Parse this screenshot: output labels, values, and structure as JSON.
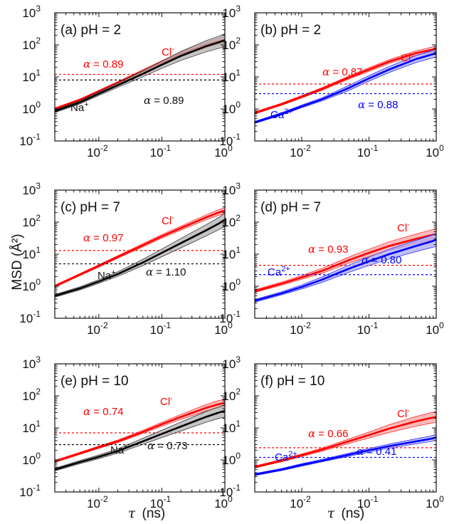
{
  "figure": {
    "ylabel": "MSD (Å²)",
    "xlabel_symbol": "τ",
    "xlabel_unit": "(ns)"
  },
  "chart_data": [
    {
      "type": "line",
      "id": "a",
      "title": "(a) pH = 2",
      "xscale": "log",
      "yscale": "log",
      "xlim": [
        0.002,
        1
      ],
      "ylim": [
        0.1,
        1000
      ],
      "xticks": [
        "10-2",
        "10-1",
        "100"
      ],
      "yticks": [
        "10-1",
        "100",
        "101",
        "102",
        "103"
      ],
      "series": [
        {
          "name": "Cl-",
          "color": "#ff0000",
          "x": [
            0.002,
            0.005,
            0.01,
            0.02,
            0.05,
            0.1,
            0.2,
            0.5,
            0.8,
            1.0
          ],
          "y": [
            1.0,
            1.9,
            3.5,
            6.5,
            15,
            28,
            52,
            100,
            130,
            145
          ],
          "band": [
            0.08,
            0.08,
            0.09,
            0.1,
            0.12,
            0.14,
            0.17,
            0.22,
            0.25,
            0.28
          ],
          "alpha": "0.89",
          "ref_y": 12
        },
        {
          "name": "Na+",
          "color": "#000000",
          "x": [
            0.002,
            0.005,
            0.01,
            0.02,
            0.05,
            0.1,
            0.2,
            0.5,
            0.8,
            1.0
          ],
          "y": [
            0.85,
            1.6,
            3.0,
            5.5,
            12.5,
            24,
            45,
            90,
            120,
            140
          ],
          "band": [
            0.1,
            0.12,
            0.14,
            0.17,
            0.24,
            0.3,
            0.38,
            0.5,
            0.55,
            0.6
          ],
          "alpha": "0.89",
          "ref_y": 8
        }
      ]
    },
    {
      "type": "line",
      "id": "b",
      "title": "(b) pH = 2",
      "xscale": "log",
      "yscale": "log",
      "xlim": [
        0.002,
        1
      ],
      "ylim": [
        0.1,
        1000
      ],
      "xticks": [
        "10-2",
        "10-1",
        "100"
      ],
      "yticks": [
        "10-1",
        "100",
        "101",
        "102",
        "103"
      ],
      "series": [
        {
          "name": "Cl-",
          "color": "#ff0000",
          "x": [
            0.002,
            0.005,
            0.01,
            0.02,
            0.05,
            0.1,
            0.2,
            0.5,
            0.8,
            1.0
          ],
          "y": [
            0.75,
            1.4,
            2.4,
            4.2,
            9.5,
            17,
            30,
            55,
            68,
            75
          ],
          "band": [
            0.08,
            0.08,
            0.09,
            0.1,
            0.12,
            0.14,
            0.15,
            0.18,
            0.2,
            0.22
          ],
          "alpha": "0.87",
          "ref_y": 6
        },
        {
          "name": "Ca2+",
          "color": "#0000ff",
          "x": [
            0.002,
            0.005,
            0.01,
            0.02,
            0.05,
            0.1,
            0.2,
            0.5,
            0.8,
            1.0
          ],
          "y": [
            0.38,
            0.7,
            1.2,
            2.0,
            4.5,
            9.0,
            17,
            36,
            48,
            55
          ],
          "band": [
            0.08,
            0.09,
            0.1,
            0.12,
            0.2,
            0.22,
            0.24,
            0.28,
            0.3,
            0.32
          ],
          "alpha": "0.88",
          "ref_y": 3
        }
      ]
    },
    {
      "type": "line",
      "id": "c",
      "title": "(c) pH = 7",
      "xscale": "log",
      "yscale": "log",
      "xlim": [
        0.002,
        1
      ],
      "ylim": [
        0.1,
        1000
      ],
      "xticks": [
        "10-2",
        "10-1",
        "100"
      ],
      "yticks": [
        "10-1",
        "100",
        "101",
        "102",
        "103"
      ],
      "series": [
        {
          "name": "Cl-",
          "color": "#ff0000",
          "x": [
            0.002,
            0.005,
            0.01,
            0.02,
            0.05,
            0.1,
            0.2,
            0.5,
            0.8,
            1.0
          ],
          "y": [
            1.0,
            2.3,
            4.3,
            8.2,
            19,
            36,
            65,
            140,
            200,
            230
          ],
          "band": [
            0.08,
            0.08,
            0.09,
            0.1,
            0.12,
            0.14,
            0.16,
            0.2,
            0.22,
            0.24
          ],
          "alpha": "0.97",
          "ref_y": 13
        },
        {
          "name": "Na+",
          "color": "#000000",
          "x": [
            0.002,
            0.005,
            0.01,
            0.02,
            0.05,
            0.1,
            0.2,
            0.5,
            0.8,
            1.0
          ],
          "y": [
            0.5,
            0.85,
            1.4,
            2.4,
            5.5,
            11,
            22,
            55,
            90,
            120
          ],
          "band": [
            0.1,
            0.12,
            0.14,
            0.18,
            0.25,
            0.32,
            0.4,
            0.5,
            0.55,
            0.6
          ],
          "alpha": "1.10",
          "ref_y": 5
        }
      ]
    },
    {
      "type": "line",
      "id": "d",
      "title": "(d) pH = 7",
      "xscale": "log",
      "yscale": "log",
      "xlim": [
        0.002,
        1
      ],
      "ylim": [
        0.1,
        1000
      ],
      "xticks": [
        "10-2",
        "10-1",
        "100"
      ],
      "yticks": [
        "10-1",
        "100",
        "101",
        "102",
        "103"
      ],
      "series": [
        {
          "name": "Cl-",
          "color": "#ff0000",
          "x": [
            0.002,
            0.005,
            0.01,
            0.02,
            0.05,
            0.1,
            0.2,
            0.5,
            0.8,
            1.0
          ],
          "y": [
            0.7,
            1.2,
            1.9,
            3.0,
            6.5,
            11,
            18,
            30,
            38,
            42
          ],
          "band": [
            0.1,
            0.12,
            0.15,
            0.2,
            0.25,
            0.3,
            0.36,
            0.42,
            0.46,
            0.5
          ],
          "alpha": "0.93",
          "ref_y": 4.5
        },
        {
          "name": "Ca2+",
          "color": "#0000ff",
          "x": [
            0.002,
            0.005,
            0.01,
            0.02,
            0.05,
            0.1,
            0.2,
            0.5,
            0.8,
            1.0
          ],
          "y": [
            0.35,
            0.6,
            0.95,
            1.6,
            3.5,
            6.0,
            10,
            18,
            24,
            28
          ],
          "band": [
            0.1,
            0.12,
            0.16,
            0.22,
            0.3,
            0.36,
            0.42,
            0.5,
            0.55,
            0.6
          ],
          "alpha": "0.80",
          "ref_y": 2.3
        }
      ]
    },
    {
      "type": "line",
      "id": "e",
      "title": "(e) pH = 10",
      "xscale": "log",
      "yscale": "log",
      "xlim": [
        0.002,
        1
      ],
      "ylim": [
        0.1,
        1000
      ],
      "xticks": [
        "10-2",
        "10-1",
        "100"
      ],
      "yticks": [
        "10-1",
        "100",
        "101",
        "102",
        "103"
      ],
      "series": [
        {
          "name": "Cl-",
          "color": "#ff0000",
          "x": [
            0.002,
            0.005,
            0.01,
            0.02,
            0.05,
            0.1,
            0.2,
            0.5,
            0.8,
            1.0
          ],
          "y": [
            0.9,
            1.6,
            2.5,
            3.8,
            7.5,
            13,
            22,
            42,
            55,
            60
          ],
          "band": [
            0.08,
            0.08,
            0.09,
            0.1,
            0.13,
            0.16,
            0.2,
            0.26,
            0.3,
            0.32
          ],
          "alpha": "0.74",
          "ref_y": 7
        },
        {
          "name": "Na+",
          "color": "#000000",
          "x": [
            0.002,
            0.005,
            0.01,
            0.02,
            0.05,
            0.1,
            0.2,
            0.5,
            0.8,
            1.0
          ],
          "y": [
            0.5,
            0.85,
            1.25,
            1.9,
            3.8,
            6.5,
            11,
            22,
            30,
            34
          ],
          "band": [
            0.1,
            0.12,
            0.14,
            0.17,
            0.24,
            0.3,
            0.38,
            0.48,
            0.52,
            0.55
          ],
          "alpha": "0.73",
          "ref_y": 3
        }
      ]
    },
    {
      "type": "line",
      "id": "f",
      "title": "(f) pH = 10",
      "xscale": "log",
      "yscale": "log",
      "xlim": [
        0.002,
        1
      ],
      "ylim": [
        0.1,
        1000
      ],
      "xticks": [
        "10-2",
        "10-1",
        "100"
      ],
      "yticks": [
        "10-1",
        "100",
        "101",
        "102",
        "103"
      ],
      "series": [
        {
          "name": "Cl-",
          "color": "#ff0000",
          "x": [
            0.002,
            0.005,
            0.01,
            0.02,
            0.05,
            0.1,
            0.2,
            0.5,
            0.8,
            1.0
          ],
          "y": [
            0.6,
            0.95,
            1.4,
            2.1,
            3.8,
            6.0,
            9.5,
            16,
            20,
            22
          ],
          "band": [
            0.08,
            0.09,
            0.1,
            0.12,
            0.18,
            0.24,
            0.32,
            0.42,
            0.46,
            0.48
          ],
          "alpha": "0.66",
          "ref_y": 2.4
        },
        {
          "name": "Ca2+",
          "color": "#0000ff",
          "x": [
            0.002,
            0.005,
            0.01,
            0.02,
            0.05,
            0.1,
            0.2,
            0.5,
            0.8,
            1.0
          ],
          "y": [
            0.35,
            0.5,
            0.7,
            0.95,
            1.45,
            2.0,
            2.7,
            3.8,
            4.5,
            5.0
          ],
          "band": [
            0.08,
            0.08,
            0.09,
            0.1,
            0.12,
            0.14,
            0.16,
            0.2,
            0.22,
            0.24
          ],
          "alpha": "0.41",
          "ref_y": 1.2
        }
      ]
    }
  ]
}
